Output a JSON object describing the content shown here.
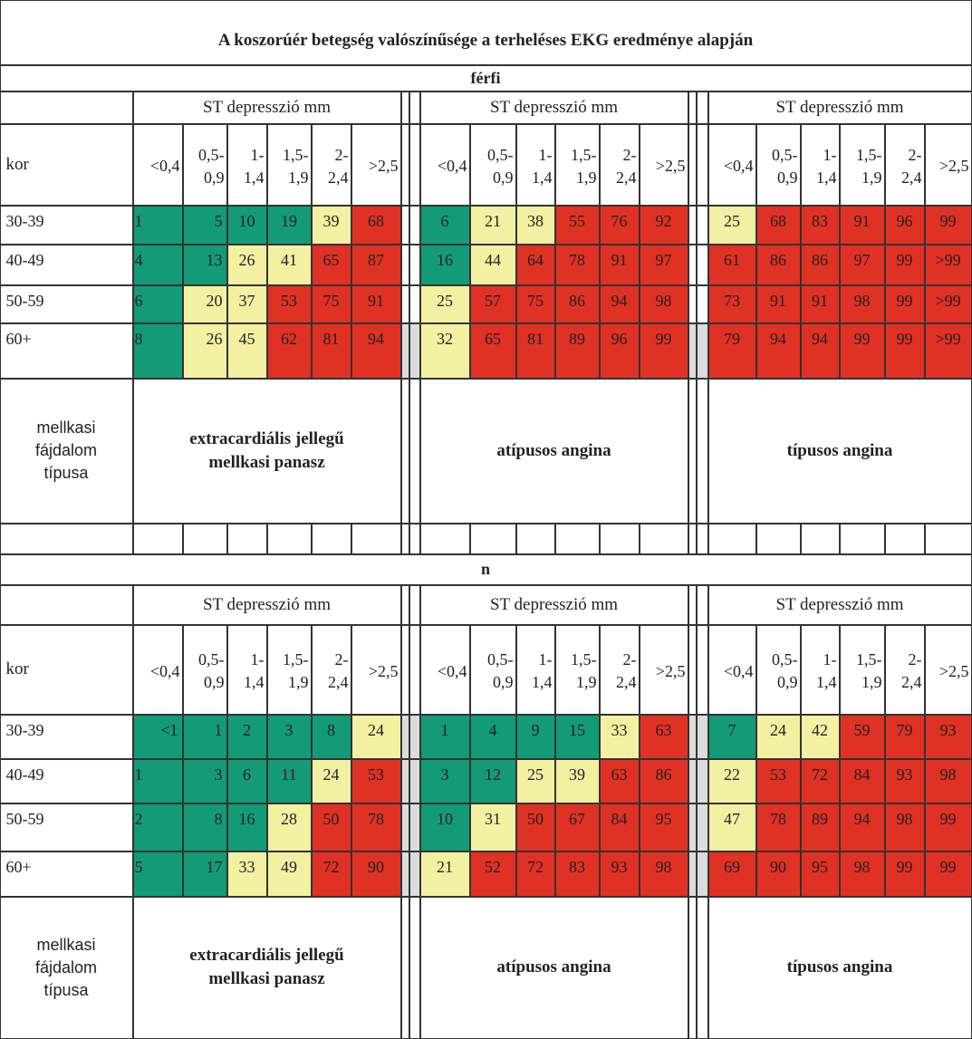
{
  "title": "A koszorúér betegség valószínűsége a terheléses EKG eredménye alapján",
  "colors": {
    "green": "#139a76",
    "yellow": "#f4f0a2",
    "red": "#df3124",
    "separator": "#dcdcdc",
    "border": "#333333"
  },
  "headers": {
    "kor": "kor",
    "st_label": "ST depresszió mm",
    "st_ranges": [
      "<0,4",
      "0,5-\n0,9",
      "1-\n1,4",
      "1,5-\n1,9",
      "2-\n2,4",
      ">2,5"
    ],
    "pain_label": "mellkasi\nfájdalom\ntípusa",
    "pain_types": [
      "extracardiális jellegű\nmellkasi panasz",
      "atípusos angina",
      "típusos angina"
    ]
  },
  "sections": [
    {
      "label": "férfi",
      "ages": [
        "30-39",
        "40-49",
        "50-59",
        "60+"
      ],
      "values": [
        [
          [
            "1",
            "5",
            "10",
            "19",
            "39",
            "68"
          ],
          [
            "6",
            "21",
            "38",
            "55",
            "76",
            "92"
          ],
          [
            "25",
            "68",
            "83",
            "91",
            "96",
            "99"
          ]
        ],
        [
          [
            "4",
            "13",
            "26",
            "41",
            "65",
            "87"
          ],
          [
            "16",
            "44",
            "64",
            "78",
            "91",
            "97"
          ],
          [
            "61",
            "86",
            "86",
            "97",
            "99",
            ">99"
          ]
        ],
        [
          [
            "6",
            "20",
            "37",
            "53",
            "75",
            "91"
          ],
          [
            "25",
            "57",
            "75",
            "86",
            "94",
            "98"
          ],
          [
            "73",
            "91",
            "91",
            "98",
            "99",
            ">99"
          ]
        ],
        [
          [
            "8",
            "26",
            "45",
            "62",
            "81",
            "94"
          ],
          [
            "32",
            "65",
            "81",
            "89",
            "96",
            "99"
          ],
          [
            "79",
            "94",
            "94",
            "99",
            "99",
            ">99"
          ]
        ]
      ],
      "colors": [
        [
          [
            "g",
            "g",
            "g",
            "g",
            "y",
            "r"
          ],
          [
            "g",
            "y",
            "y",
            "r",
            "r",
            "r"
          ],
          [
            "y",
            "r",
            "r",
            "r",
            "r",
            "r"
          ]
        ],
        [
          [
            "g",
            "g",
            "y",
            "y",
            "r",
            "r"
          ],
          [
            "g",
            "y",
            "r",
            "r",
            "r",
            "r"
          ],
          [
            "r",
            "r",
            "r",
            "r",
            "r",
            "r"
          ]
        ],
        [
          [
            "g",
            "y",
            "y",
            "r",
            "r",
            "r"
          ],
          [
            "y",
            "r",
            "r",
            "r",
            "r",
            "r"
          ],
          [
            "r",
            "r",
            "r",
            "r",
            "r",
            "r"
          ]
        ],
        [
          [
            "g",
            "y",
            "y",
            "r",
            "r",
            "r"
          ],
          [
            "y",
            "r",
            "r",
            "r",
            "r",
            "r"
          ],
          [
            "r",
            "r",
            "r",
            "r",
            "r",
            "r"
          ]
        ]
      ]
    },
    {
      "label": "n",
      "ages": [
        "30-39",
        "40-49",
        "50-59",
        "60+"
      ],
      "values": [
        [
          [
            "<1",
            "1",
            "2",
            "3",
            "8",
            "24"
          ],
          [
            "1",
            "4",
            "9",
            "15",
            "33",
            "63"
          ],
          [
            "7",
            "24",
            "42",
            "59",
            "79",
            "93"
          ]
        ],
        [
          [
            "1",
            "3",
            "6",
            "11",
            "24",
            "53"
          ],
          [
            "3",
            "12",
            "25",
            "39",
            "63",
            "86"
          ],
          [
            "22",
            "53",
            "72",
            "84",
            "93",
            "98"
          ]
        ],
        [
          [
            "2",
            "8",
            "16",
            "28",
            "50",
            "78"
          ],
          [
            "10",
            "31",
            "50",
            "67",
            "84",
            "95"
          ],
          [
            "47",
            "78",
            "89",
            "94",
            "98",
            "99"
          ]
        ],
        [
          [
            "5",
            "17",
            "33",
            "49",
            "72",
            "90"
          ],
          [
            "21",
            "52",
            "72",
            "83",
            "93",
            "98"
          ],
          [
            "69",
            "90",
            "95",
            "98",
            "99",
            "99"
          ]
        ]
      ],
      "colors": [
        [
          [
            "g",
            "g",
            "g",
            "g",
            "g",
            "y"
          ],
          [
            "g",
            "g",
            "g",
            "g",
            "y",
            "r"
          ],
          [
            "g",
            "y",
            "y",
            "r",
            "r",
            "r"
          ]
        ],
        [
          [
            "g",
            "g",
            "g",
            "g",
            "y",
            "r"
          ],
          [
            "g",
            "g",
            "y",
            "y",
            "r",
            "r"
          ],
          [
            "y",
            "r",
            "r",
            "r",
            "r",
            "r"
          ]
        ],
        [
          [
            "g",
            "g",
            "g",
            "y",
            "r",
            "r"
          ],
          [
            "g",
            "y",
            "r",
            "r",
            "r",
            "r"
          ],
          [
            "y",
            "r",
            "r",
            "r",
            "r",
            "r"
          ]
        ],
        [
          [
            "g",
            "g",
            "y",
            "y",
            "r",
            "r"
          ],
          [
            "y",
            "r",
            "r",
            "r",
            "r",
            "r"
          ],
          [
            "r",
            "r",
            "r",
            "r",
            "r",
            "r"
          ]
        ]
      ]
    }
  ]
}
